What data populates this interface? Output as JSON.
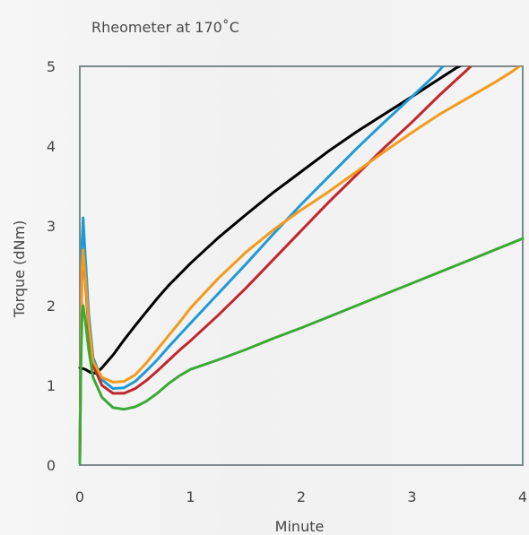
{
  "chart_data": {
    "type": "line",
    "title": "Rheometer at 170˚C",
    "xlabel": "Minute",
    "ylabel": "Torque (dNm)",
    "xlim": [
      0,
      4
    ],
    "ylim": [
      0,
      5
    ],
    "xticks": [
      "0",
      "1",
      "2",
      "3",
      "4"
    ],
    "yticks": [
      "0",
      "1",
      "2",
      "3",
      "4",
      "5"
    ],
    "grid": false,
    "series": [
      {
        "color": "#000000",
        "points": [
          [
            0,
            1.22
          ],
          [
            0.05,
            1.2
          ],
          [
            0.1,
            1.16
          ],
          [
            0.15,
            1.15
          ],
          [
            0.2,
            1.22
          ],
          [
            0.3,
            1.38
          ],
          [
            0.4,
            1.57
          ],
          [
            0.5,
            1.75
          ],
          [
            0.6,
            1.92
          ],
          [
            0.7,
            2.09
          ],
          [
            0.8,
            2.25
          ],
          [
            0.9,
            2.39
          ],
          [
            1.0,
            2.53
          ],
          [
            1.25,
            2.85
          ],
          [
            1.5,
            3.14
          ],
          [
            1.75,
            3.42
          ],
          [
            2.0,
            3.68
          ],
          [
            2.25,
            3.94
          ],
          [
            2.5,
            4.18
          ],
          [
            2.75,
            4.4
          ],
          [
            3.0,
            4.62
          ],
          [
            3.2,
            4.8
          ],
          [
            3.4,
            4.98
          ],
          [
            3.43,
            5.0
          ]
        ]
      },
      {
        "color": "#1f9ad6",
        "points": [
          [
            0,
            0.1
          ],
          [
            0.01,
            1.5
          ],
          [
            0.02,
            2.8
          ],
          [
            0.03,
            3.1
          ],
          [
            0.05,
            2.6
          ],
          [
            0.08,
            1.9
          ],
          [
            0.12,
            1.35
          ],
          [
            0.2,
            1.07
          ],
          [
            0.3,
            0.96
          ],
          [
            0.4,
            0.97
          ],
          [
            0.5,
            1.05
          ],
          [
            0.6,
            1.18
          ],
          [
            0.7,
            1.32
          ],
          [
            0.8,
            1.48
          ],
          [
            0.9,
            1.63
          ],
          [
            1.0,
            1.78
          ],
          [
            1.25,
            2.15
          ],
          [
            1.5,
            2.52
          ],
          [
            1.75,
            2.9
          ],
          [
            2.0,
            3.27
          ],
          [
            2.25,
            3.62
          ],
          [
            2.5,
            3.97
          ],
          [
            2.75,
            4.3
          ],
          [
            3.0,
            4.62
          ],
          [
            3.2,
            4.88
          ],
          [
            3.28,
            5.0
          ]
        ]
      },
      {
        "color": "#c0272d",
        "points": [
          [
            0,
            0.1
          ],
          [
            0.01,
            1.4
          ],
          [
            0.02,
            2.5
          ],
          [
            0.03,
            2.65
          ],
          [
            0.05,
            2.3
          ],
          [
            0.08,
            1.7
          ],
          [
            0.12,
            1.25
          ],
          [
            0.2,
            1.0
          ],
          [
            0.3,
            0.9
          ],
          [
            0.4,
            0.9
          ],
          [
            0.5,
            0.96
          ],
          [
            0.6,
            1.06
          ],
          [
            0.7,
            1.18
          ],
          [
            0.8,
            1.31
          ],
          [
            0.9,
            1.44
          ],
          [
            1.0,
            1.56
          ],
          [
            1.25,
            1.88
          ],
          [
            1.5,
            2.22
          ],
          [
            1.75,
            2.58
          ],
          [
            2.0,
            2.94
          ],
          [
            2.25,
            3.3
          ],
          [
            2.5,
            3.64
          ],
          [
            2.75,
            3.98
          ],
          [
            3.0,
            4.3
          ],
          [
            3.25,
            4.64
          ],
          [
            3.5,
            4.96
          ],
          [
            3.53,
            5.0
          ]
        ]
      },
      {
        "color": "#f29b1d",
        "points": [
          [
            0,
            0.1
          ],
          [
            0.01,
            1.4
          ],
          [
            0.02,
            2.5
          ],
          [
            0.03,
            2.7
          ],
          [
            0.05,
            2.35
          ],
          [
            0.08,
            1.78
          ],
          [
            0.12,
            1.3
          ],
          [
            0.2,
            1.1
          ],
          [
            0.3,
            1.04
          ],
          [
            0.4,
            1.05
          ],
          [
            0.5,
            1.13
          ],
          [
            0.6,
            1.28
          ],
          [
            0.7,
            1.45
          ],
          [
            0.8,
            1.62
          ],
          [
            0.9,
            1.79
          ],
          [
            1.0,
            1.97
          ],
          [
            1.25,
            2.34
          ],
          [
            1.5,
            2.67
          ],
          [
            1.75,
            2.95
          ],
          [
            2.0,
            3.2
          ],
          [
            2.25,
            3.43
          ],
          [
            2.5,
            3.68
          ],
          [
            2.75,
            3.93
          ],
          [
            3.0,
            4.17
          ],
          [
            3.25,
            4.4
          ],
          [
            3.5,
            4.6
          ],
          [
            3.75,
            4.8
          ],
          [
            3.9,
            4.93
          ],
          [
            3.97,
            5.0
          ]
        ]
      },
      {
        "color": "#3aaa35",
        "points": [
          [
            0,
            0.02
          ],
          [
            0.01,
            1.2
          ],
          [
            0.02,
            1.9
          ],
          [
            0.03,
            2.0
          ],
          [
            0.05,
            1.8
          ],
          [
            0.08,
            1.45
          ],
          [
            0.12,
            1.1
          ],
          [
            0.2,
            0.85
          ],
          [
            0.3,
            0.72
          ],
          [
            0.4,
            0.7
          ],
          [
            0.5,
            0.73
          ],
          [
            0.6,
            0.8
          ],
          [
            0.7,
            0.9
          ],
          [
            0.8,
            1.02
          ],
          [
            0.9,
            1.12
          ],
          [
            1.0,
            1.2
          ],
          [
            1.25,
            1.32
          ],
          [
            1.5,
            1.45
          ],
          [
            1.75,
            1.59
          ],
          [
            2.0,
            1.72
          ],
          [
            2.25,
            1.86
          ],
          [
            2.5,
            2.0
          ],
          [
            2.75,
            2.14
          ],
          [
            3.0,
            2.28
          ],
          [
            3.25,
            2.42
          ],
          [
            3.5,
            2.56
          ],
          [
            3.75,
            2.7
          ],
          [
            4.0,
            2.84
          ]
        ]
      }
    ]
  }
}
